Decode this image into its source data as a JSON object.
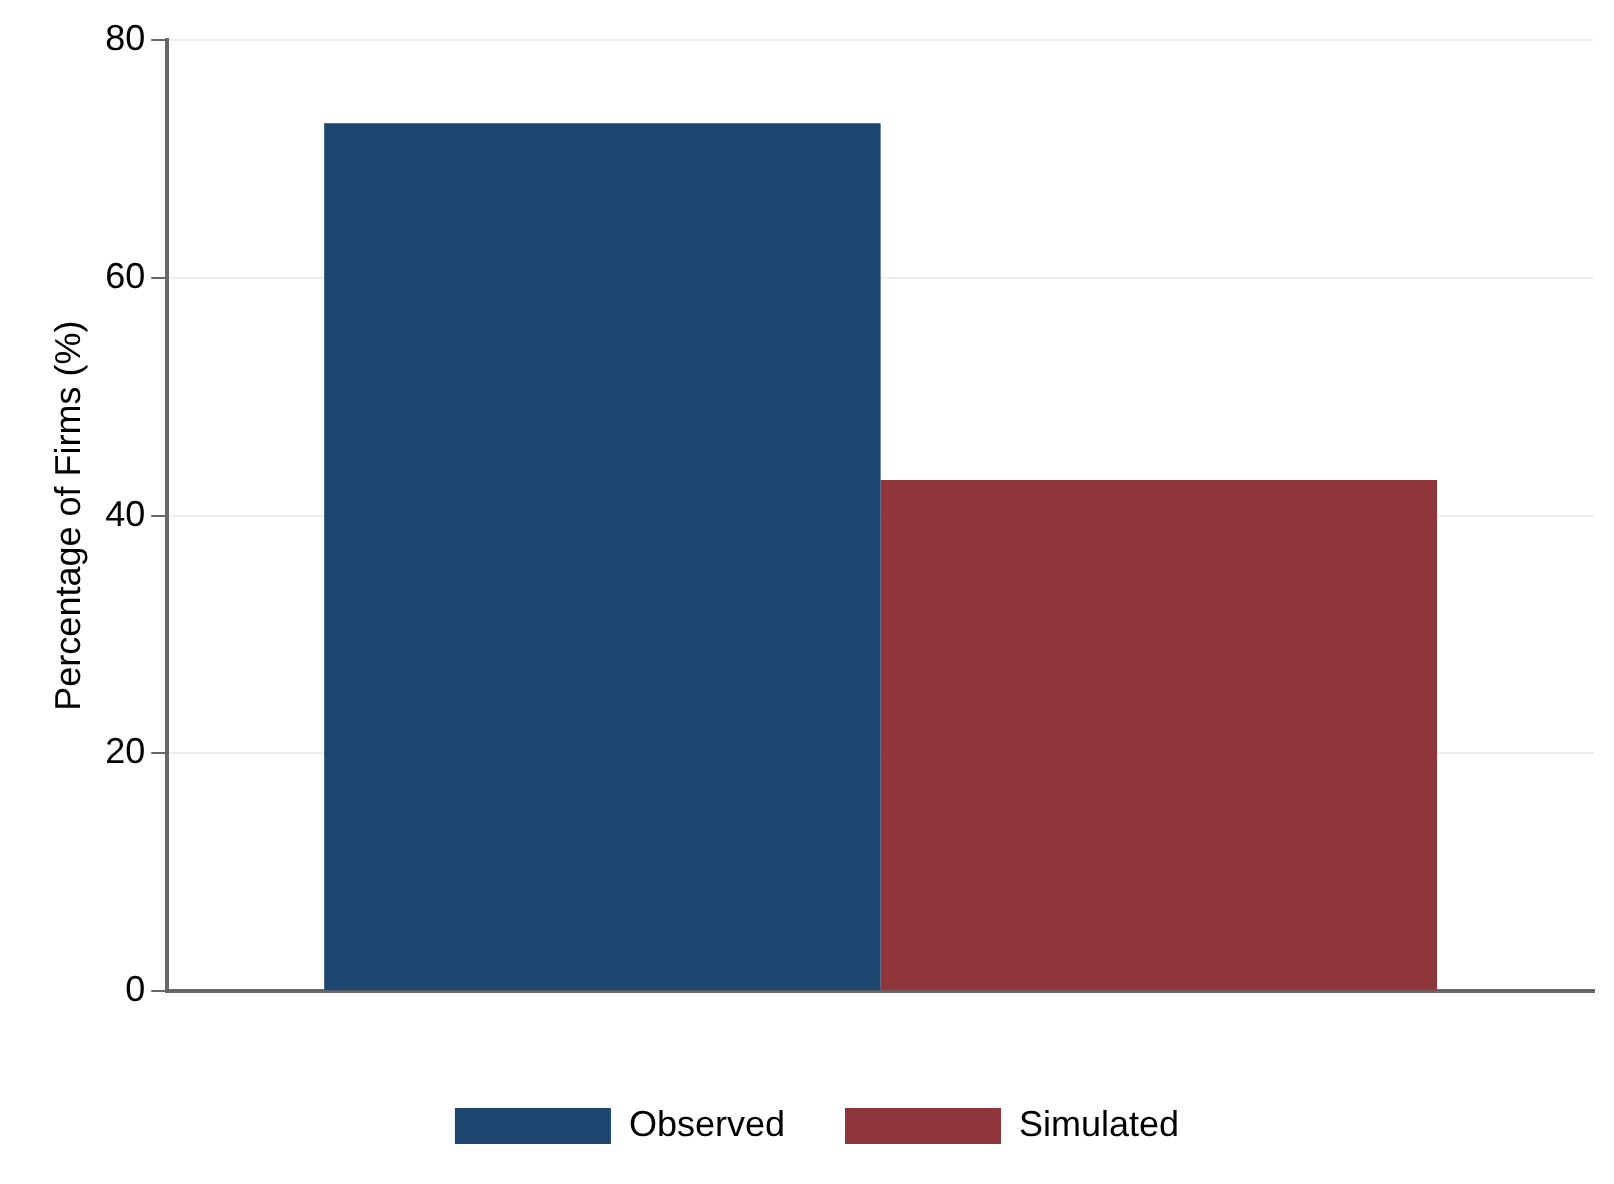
{
  "chart_data": {
    "type": "bar",
    "ylabel": "Percentage of Firms (%)",
    "categories": [
      null
    ],
    "series": [
      {
        "name": "Observed",
        "color": "#1c4570",
        "values": [
          73
        ]
      },
      {
        "name": "Simulated",
        "color": "#8f363c",
        "values": [
          43
        ]
      }
    ],
    "ylim": [
      0,
      80
    ],
    "yticks": [
      0,
      20,
      40,
      60,
      80
    ],
    "grid": "y",
    "legend": "bottom"
  }
}
